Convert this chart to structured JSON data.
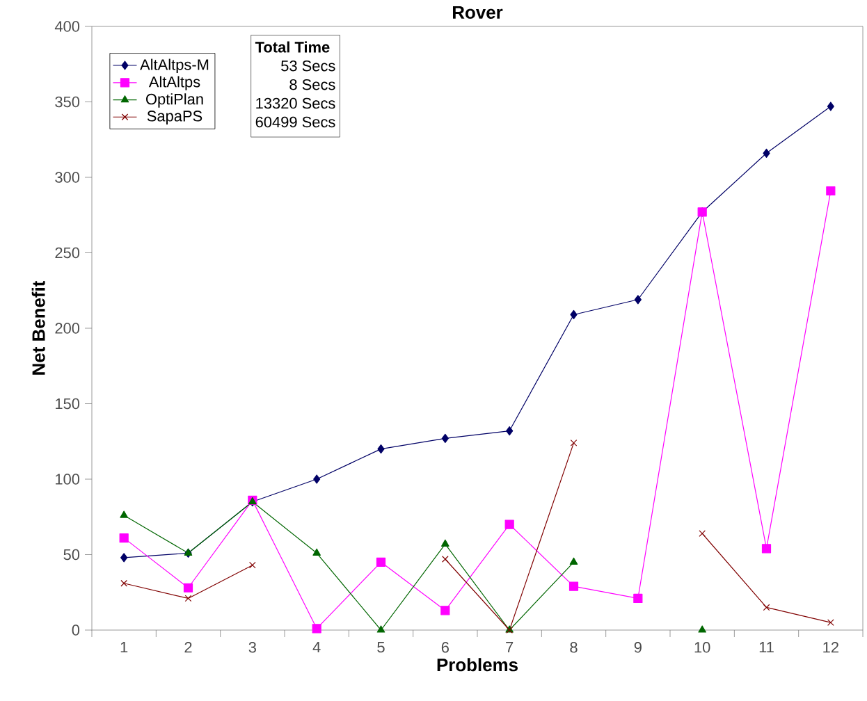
{
  "chart_data": {
    "type": "line",
    "title": "Rover",
    "xlabel": "Problems",
    "ylabel": "Net Benefit",
    "categories": [
      "1",
      "2",
      "3",
      "4",
      "5",
      "6",
      "7",
      "8",
      "9",
      "10",
      "11",
      "12"
    ],
    "ylim": [
      0,
      400
    ],
    "yticks": [
      0,
      50,
      100,
      150,
      200,
      250,
      300,
      350,
      400
    ],
    "grid": false,
    "legend": "top left",
    "series": [
      {
        "name": "AltAltps-M",
        "color": "#000066",
        "marker": "diamond",
        "values": [
          48,
          51,
          85,
          100,
          120,
          127,
          132,
          209,
          219,
          277,
          316,
          347
        ]
      },
      {
        "name": "AltAltps",
        "color": "#ff00ff",
        "marker": "square",
        "values": [
          61,
          28,
          86,
          1,
          45,
          13,
          70,
          29,
          21,
          277,
          54,
          291
        ]
      },
      {
        "name": "OptiPlan",
        "color": "#006600",
        "marker": "triangle",
        "values": [
          76,
          51,
          85,
          51,
          0,
          57,
          0,
          45,
          null,
          0,
          null,
          null
        ]
      },
      {
        "name": "SapaPS",
        "color": "#800000",
        "marker": "cross",
        "values": [
          31,
          21,
          43,
          null,
          null,
          47,
          0,
          124,
          null,
          64,
          15,
          5
        ]
      }
    ],
    "annotations": [
      "Total Time",
      "53 Secs",
      "8 Secs",
      "13320 Secs",
      "60499 Secs"
    ]
  }
}
